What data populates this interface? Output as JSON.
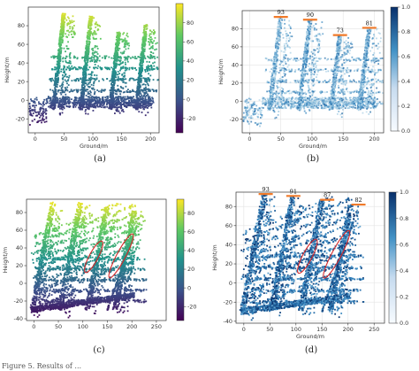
{
  "footer_text": "Figure 5. Results of ...",
  "chart_data": [
    {
      "type": "scatter",
      "panel": "(a)",
      "xlabel": "Ground/m",
      "ylabel": "Height/m",
      "xlim": [
        -12,
        215
      ],
      "ylim": [
        -35,
        100
      ],
      "xticks": [
        0,
        50,
        100,
        150,
        200
      ],
      "yticks": [
        -20,
        0,
        20,
        40,
        60,
        80
      ],
      "colormap": "viridis",
      "colorbar": {
        "min": -35,
        "max": 100,
        "ticks": [
          -20,
          0,
          20,
          40,
          60,
          80
        ]
      },
      "grid": false,
      "annotations": [],
      "ellipses": []
    },
    {
      "type": "scatter",
      "panel": "(b)",
      "xlabel": "Ground/m",
      "ylabel": "Height/m",
      "xlim": [
        -12,
        215
      ],
      "ylim": [
        -35,
        100
      ],
      "xticks": [
        0,
        50,
        100,
        150,
        200
      ],
      "yticks": [
        -20,
        0,
        20,
        40,
        60,
        80
      ],
      "colormap": "blues",
      "colorbar": {
        "min": 0,
        "max": 1,
        "ticks": [
          "0.0",
          "0.2",
          "0.4",
          "0.6",
          "0.8",
          "1.0"
        ]
      },
      "grid": true,
      "annotations": [
        {
          "label": "93",
          "x": 50,
          "y": 93
        },
        {
          "label": "90",
          "x": 97,
          "y": 90
        },
        {
          "label": "73",
          "x": 145,
          "y": 73
        },
        {
          "label": "81",
          "x": 192,
          "y": 81
        }
      ],
      "ellipses": []
    },
    {
      "type": "scatter",
      "panel": "(c)",
      "xlabel": "",
      "ylabel": "Height/m",
      "xlim": [
        -15,
        270
      ],
      "ylim": [
        -42,
        95
      ],
      "xticks": [
        0,
        50,
        100,
        150,
        200,
        250
      ],
      "yticks": [
        -40,
        -20,
        0,
        20,
        40,
        60,
        80
      ],
      "colormap": "viridis",
      "colorbar": {
        "min": -35,
        "max": 95,
        "ticks": [
          -20,
          0,
          20,
          40,
          60,
          80
        ]
      },
      "grid": false,
      "annotations": [],
      "ellipses": [
        {
          "cx": 122,
          "cy": 30,
          "rx": 9,
          "ry": 20,
          "rotate": 28
        },
        {
          "cx": 178,
          "cy": 31,
          "rx": 9,
          "ry": 28,
          "rotate": 28
        }
      ]
    },
    {
      "type": "scatter",
      "panel": "(d)",
      "xlabel": "Ground/m",
      "ylabel": "Height/m",
      "xlim": [
        -15,
        270
      ],
      "ylim": [
        -42,
        95
      ],
      "xticks": [
        0,
        50,
        100,
        150,
        200,
        250
      ],
      "yticks": [
        -40,
        -20,
        0,
        20,
        40,
        60,
        80
      ],
      "colormap": "blues",
      "colorbar": {
        "min": 0,
        "max": 1,
        "ticks": [
          "0.0",
          "0.2",
          "0.4",
          "0.6",
          "0.8",
          "1.0"
        ]
      },
      "grid": true,
      "annotations": [
        {
          "label": "93",
          "x": 42,
          "y": 93
        },
        {
          "label": "91",
          "x": 95,
          "y": 91
        },
        {
          "label": "87",
          "x": 160,
          "y": 87
        },
        {
          "label": "82",
          "x": 220,
          "y": 82
        }
      ],
      "ellipses": [
        {
          "cx": 122,
          "cy": 28,
          "rx": 9,
          "ry": 20,
          "rotate": 28
        },
        {
          "cx": 178,
          "cy": 30,
          "rx": 9,
          "ry": 28,
          "rotate": 28
        }
      ]
    }
  ]
}
